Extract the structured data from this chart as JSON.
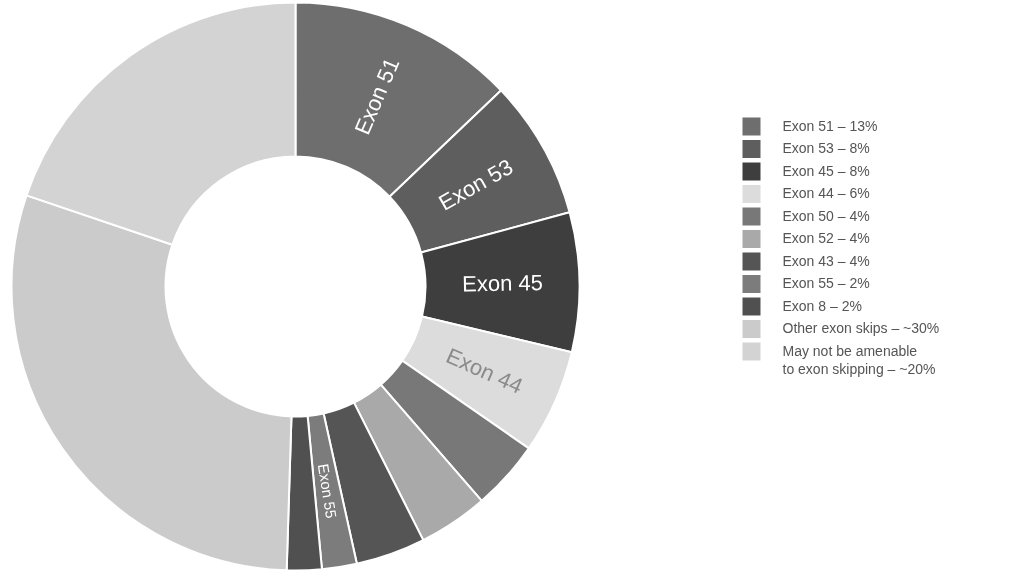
{
  "chart_data": {
    "type": "donut",
    "categories": [
      "Exon 51 – 13%",
      "Exon 53 – 8%",
      "Exon 45 – 8%",
      "Exon 44 – 6%",
      "Exon 50 – 4%",
      "Exon 52 – 4%",
      "Exon 43 – 4%",
      "Exon 55 – 2%",
      "Exon 8 – 2%",
      "Other exon skips – ~30%",
      "May not be amenable\nto exon skipping – ~20%"
    ],
    "values": [
      13,
      8,
      8,
      6,
      4,
      4,
      4,
      2,
      2,
      30,
      20
    ],
    "colors": [
      "#6e6e6e",
      "#5e5e5e",
      "#3e3e3e",
      "#dcdcdc",
      "#787878",
      "#a9a9a9",
      "#555555",
      "#7c7c7c",
      "#505050",
      "#cbcbcb",
      "#d3d3d3"
    ],
    "value_labels": [
      "Exon 51",
      "Exon 53",
      "Exon 45",
      "Exon 44",
      null,
      null,
      null,
      "Exon 55",
      null,
      null,
      null
    ],
    "legend": "right"
  }
}
